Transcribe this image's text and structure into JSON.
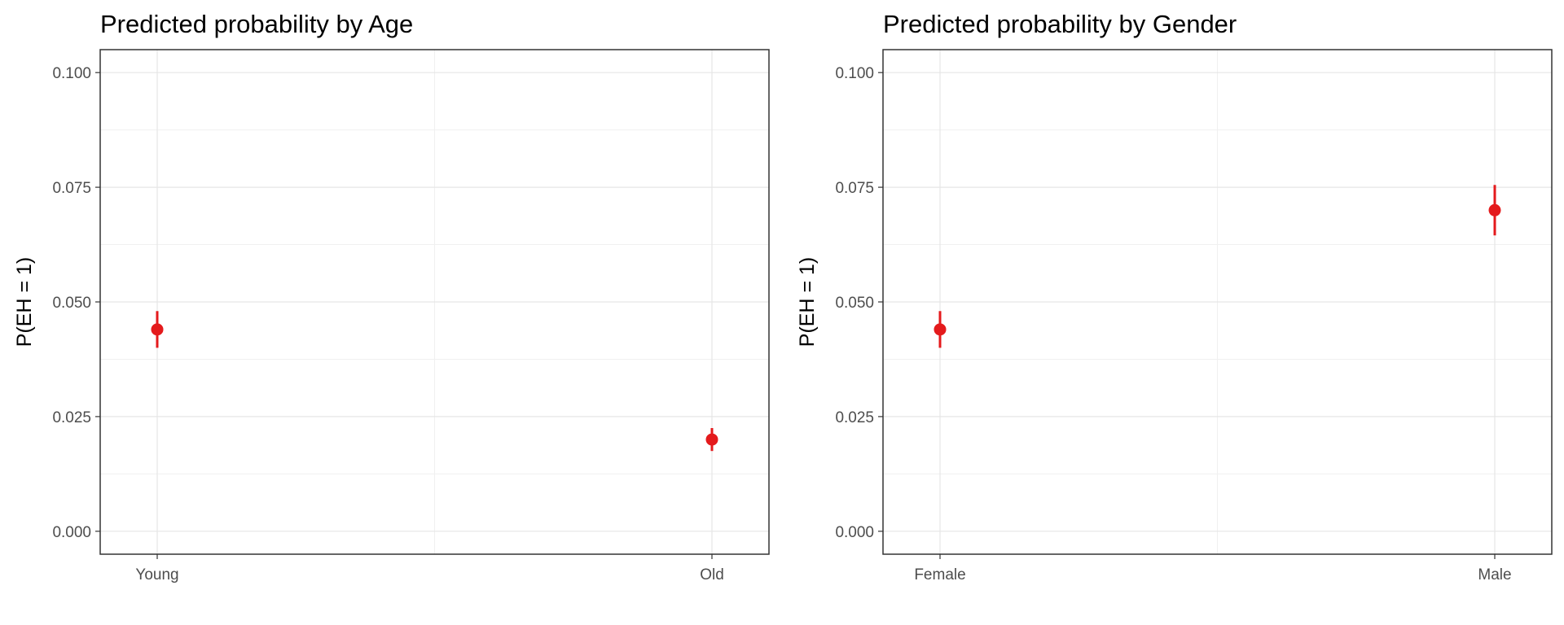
{
  "chart_data": [
    {
      "type": "scatter",
      "title": "Predicted probability by Age",
      "xlabel": "",
      "ylabel": "P(EH = 1)",
      "categories": [
        "Young",
        "Old"
      ],
      "values": [
        0.044,
        0.02
      ],
      "lower": [
        0.04,
        0.0175
      ],
      "upper": [
        0.048,
        0.0225
      ],
      "ylim": [
        -0.005,
        0.105
      ],
      "yticks": [
        0.0,
        0.025,
        0.05,
        0.075,
        0.1
      ],
      "ytick_labels": [
        "0.000",
        "0.025",
        "0.050",
        "0.075",
        "0.100"
      ],
      "grid": true,
      "legend": "none",
      "point_color": "#e41a1c"
    },
    {
      "type": "scatter",
      "title": "Predicted probability by Gender",
      "xlabel": "",
      "ylabel": "P(EH = 1)",
      "categories": [
        "Female",
        "Male"
      ],
      "values": [
        0.044,
        0.07
      ],
      "lower": [
        0.04,
        0.0645
      ],
      "upper": [
        0.048,
        0.0755
      ],
      "ylim": [
        -0.005,
        0.105
      ],
      "yticks": [
        0.0,
        0.025,
        0.05,
        0.075,
        0.1
      ],
      "ytick_labels": [
        "0.000",
        "0.025",
        "0.050",
        "0.075",
        "0.100"
      ],
      "grid": true,
      "legend": "none",
      "point_color": "#e41a1c"
    }
  ]
}
